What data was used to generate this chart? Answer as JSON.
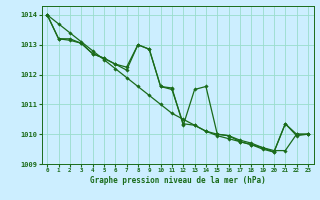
{
  "xlabel": "Graphe pression niveau de la mer (hPa)",
  "bg_color": "#cceeff",
  "grid_color": "#99ddcc",
  "line_color": "#1a6b1a",
  "x": [
    0,
    1,
    2,
    3,
    4,
    5,
    6,
    7,
    8,
    9,
    10,
    11,
    12,
    13,
    14,
    15,
    16,
    17,
    18,
    19,
    20,
    21,
    22,
    23
  ],
  "line_straight": [
    1014.0,
    1013.7,
    1013.4,
    1013.1,
    1012.8,
    1012.5,
    1012.2,
    1011.9,
    1011.6,
    1011.3,
    1011.0,
    1010.7,
    1010.5,
    1010.3,
    1010.1,
    1009.95,
    1009.85,
    1009.75,
    1009.65,
    1009.55,
    1009.45,
    1009.45,
    1010.0,
    1010.0
  ],
  "line_zigzag1": [
    1014.0,
    1013.2,
    1013.2,
    1013.05,
    1012.7,
    1012.55,
    1012.35,
    1012.25,
    1013.0,
    1012.85,
    1011.6,
    1011.55,
    1010.3,
    1011.5,
    1011.6,
    1010.0,
    1009.95,
    1009.75,
    1009.65,
    1009.5,
    1009.4,
    1010.35,
    1009.95,
    1010.0
  ],
  "line_zigzag2": [
    1014.0,
    1013.2,
    1013.15,
    1013.05,
    1012.7,
    1012.55,
    1012.35,
    1012.15,
    1013.0,
    1012.85,
    1011.6,
    1011.5,
    1010.35,
    1010.3,
    1010.1,
    1010.0,
    1009.95,
    1009.8,
    1009.7,
    1009.55,
    1009.4,
    1010.35,
    1010.0,
    1010.0
  ],
  "ylim": [
    1009.0,
    1014.3
  ],
  "yticks": [
    1009,
    1010,
    1011,
    1012,
    1013,
    1014
  ],
  "xticks": [
    0,
    1,
    2,
    3,
    4,
    5,
    6,
    7,
    8,
    9,
    10,
    11,
    12,
    13,
    14,
    15,
    16,
    17,
    18,
    19,
    20,
    21,
    22,
    23
  ]
}
